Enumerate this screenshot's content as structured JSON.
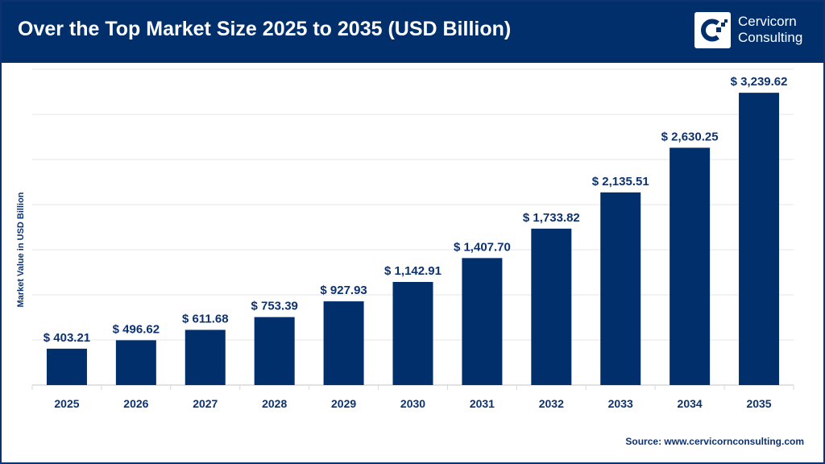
{
  "header": {
    "title": "Over the Top Market Size 2025 to 2035 (USD Billion)",
    "logo_text": [
      "Cervicorn",
      "Consulting"
    ]
  },
  "source": "Source: www.cervicornconsulting.com",
  "colors": {
    "bar": "#002f6c",
    "header": "#002f6c",
    "text": "#0d3270",
    "grid": "#e6e6e6"
  },
  "chart_data": {
    "type": "bar",
    "title": "Over the Top Market Size 2025 to 2035 (USD Billion)",
    "xlabel": "",
    "ylabel": "Market Value in USD Billion",
    "categories": [
      "2025",
      "2026",
      "2027",
      "2028",
      "2029",
      "2030",
      "2031",
      "2032",
      "2033",
      "2034",
      "2035"
    ],
    "values": [
      403.21,
      496.62,
      611.68,
      753.39,
      927.93,
      1142.91,
      1407.7,
      1733.82,
      2135.51,
      2630.25,
      3239.62
    ],
    "data_labels": [
      "$ 403.21",
      "$ 496.62",
      "$ 611.68",
      "$ 753.39",
      "$ 927.93",
      "$ 1,142.91",
      "$ 1,407.70",
      "$ 1,733.82",
      "$ 2,135.51",
      "$ 2,630.25",
      "$ 3,239.62"
    ],
    "ylim": [
      0,
      3500
    ],
    "grid": true,
    "y_tick_labels_visible": false
  }
}
